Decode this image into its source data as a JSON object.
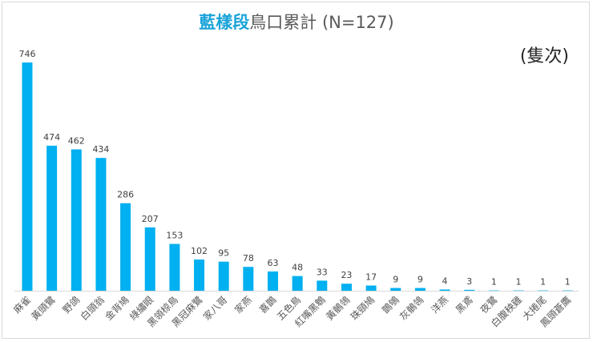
{
  "chart_data": {
    "type": "bar",
    "title_highlight": "藍樣段",
    "title_rest": "鳥口累計 (N=127)",
    "unit_label": "(隻次)",
    "categories": [
      "麻雀",
      "黃頭鷺",
      "野鴿",
      "白頭翁",
      "金背鳩",
      "綠繡眼",
      "黑領椋鳥",
      "黑冠麻鷺",
      "家八哥",
      "家燕",
      "喜鵲",
      "五色鳥",
      "紅嘴黑鵯",
      "黃鶺鴒",
      "珠頸鳩",
      "鵲鴝",
      "灰鶺鴒",
      "洋燕",
      "黑鳶",
      "夜鷺",
      "白腹秧雞",
      "大捲尾",
      "鳳頭蒼鷹"
    ],
    "values": [
      746,
      474,
      462,
      434,
      286,
      207,
      153,
      102,
      95,
      78,
      63,
      48,
      33,
      23,
      17,
      9,
      9,
      4,
      3,
      1,
      1,
      1,
      1
    ],
    "ylim": [
      0,
      746
    ],
    "grid": false,
    "data_labels": true,
    "bar_color": "#00b0f0",
    "highlight_color": "#1aa3d9"
  }
}
